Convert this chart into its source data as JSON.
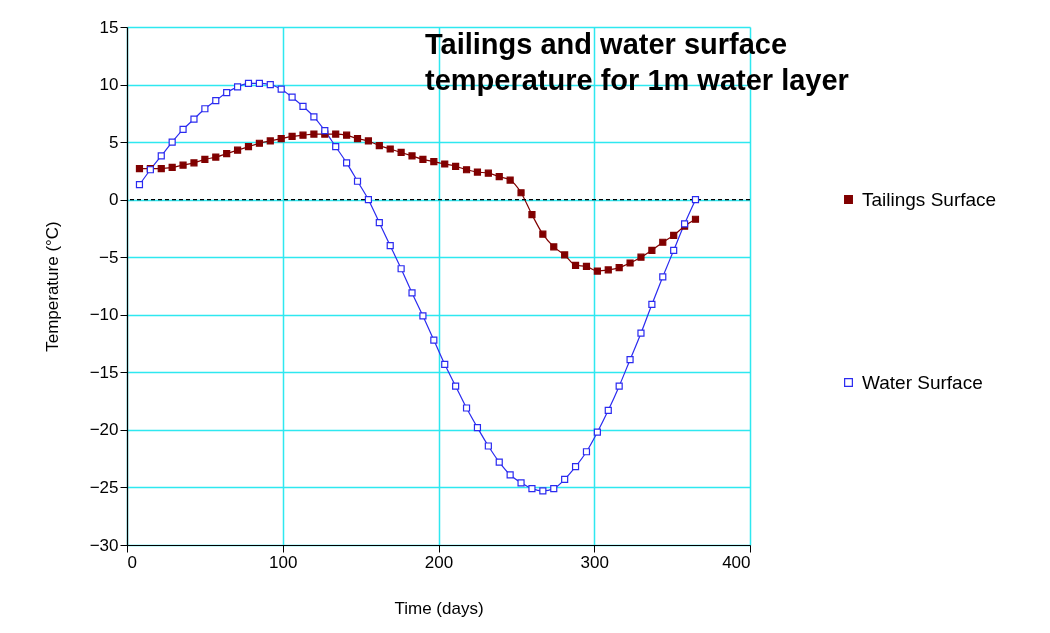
{
  "chart_data": {
    "type": "line",
    "title": "Tailings and water surface temperature for 1m water layer",
    "xlabel": "Time (days)",
    "ylabel": "Temperature (°C)",
    "x": [
      8,
      15,
      22,
      29,
      36,
      43,
      50,
      57,
      64,
      71,
      78,
      85,
      92,
      99,
      106,
      113,
      120,
      127,
      134,
      141,
      148,
      155,
      162,
      169,
      176,
      183,
      190,
      197,
      204,
      211,
      218,
      225,
      232,
      239,
      246,
      253,
      260,
      267,
      274,
      281,
      288,
      295,
      302,
      309,
      316,
      323,
      330,
      337,
      344,
      351,
      358,
      365
    ],
    "series": [
      {
        "name": "Tailings Surface",
        "color": "#800000",
        "values": [
          2.7,
          2.7,
          2.7,
          2.8,
          3.0,
          3.2,
          3.5,
          3.7,
          4.0,
          4.3,
          4.6,
          4.9,
          5.1,
          5.3,
          5.5,
          5.6,
          5.7,
          5.7,
          5.7,
          5.6,
          5.3,
          5.1,
          4.7,
          4.4,
          4.1,
          3.8,
          3.5,
          3.3,
          3.1,
          2.9,
          2.6,
          2.4,
          2.3,
          2.0,
          1.7,
          0.6,
          -1.3,
          -3.0,
          -4.1,
          -4.8,
          -5.7,
          -5.8,
          -6.2,
          -6.1,
          -5.9,
          -5.5,
          -5.0,
          -4.4,
          -3.7,
          -3.1,
          -2.3,
          -1.7
        ]
      },
      {
        "name": "Water Surface",
        "color": "#2a2af0",
        "values": [
          1.3,
          2.6,
          3.8,
          5.0,
          6.1,
          7.0,
          7.9,
          8.6,
          9.3,
          9.8,
          10.1,
          10.1,
          10.0,
          9.6,
          8.9,
          8.1,
          7.2,
          6.0,
          4.6,
          3.2,
          1.6,
          0,
          -2.0,
          -4.0,
          -6.0,
          -8.1,
          -10.1,
          -12.2,
          -14.3,
          -16.2,
          -18.1,
          -19.8,
          -21.4,
          -22.8,
          -23.9,
          -24.6,
          -25.1,
          -25.3,
          -25.1,
          -24.3,
          -23.2,
          -21.9,
          -20.2,
          -18.3,
          -16.2,
          -13.9,
          -11.6,
          -9.1,
          -6.7,
          -4.4,
          -2.1,
          0
        ]
      }
    ],
    "xlim": [
      0,
      400
    ],
    "xticks": [
      0,
      100,
      200,
      300,
      400
    ],
    "ylim": [
      -30,
      15
    ],
    "yticks": [
      -30,
      -25,
      -20,
      -15,
      -10,
      -5,
      0,
      5,
      10,
      15
    ],
    "grid": true,
    "legend": "right",
    "marker": "square",
    "line_style": "solid",
    "ref_lines": [
      {
        "axis": "y",
        "value": 0,
        "color": "#000000",
        "line_style": "dashed"
      }
    ]
  }
}
